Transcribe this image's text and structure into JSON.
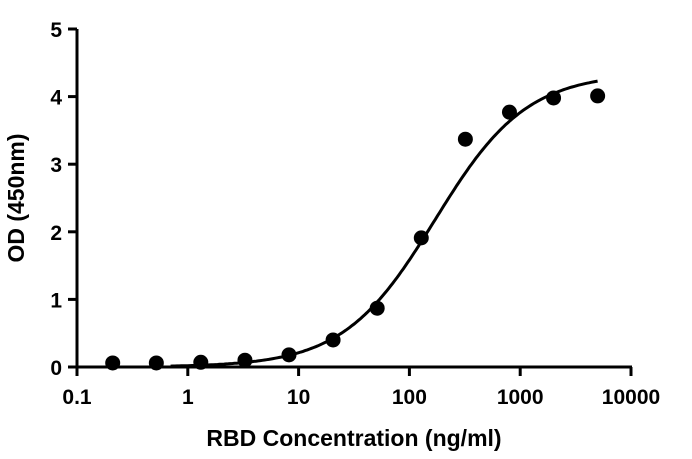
{
  "chart_data": {
    "type": "scatter",
    "title": "",
    "xlabel": "RBD Concentration (ng/ml)",
    "ylabel": "OD (450nm)",
    "x_scale": "log",
    "xlim": [
      0.1,
      10000
    ],
    "ylim": [
      0,
      5
    ],
    "x_ticks": [
      "0.1",
      "1",
      "10",
      "100",
      "1000",
      "10000"
    ],
    "y_ticks": [
      "0",
      "1",
      "2",
      "3",
      "4",
      "5"
    ],
    "grid": false,
    "legend": "none",
    "marker_color": "#000000",
    "x": [
      0.21,
      0.52,
      1.31,
      3.28,
      8.19,
      20.48,
      51.2,
      128,
      320,
      800,
      2000,
      5000
    ],
    "y": [
      0.06,
      0.06,
      0.07,
      0.1,
      0.18,
      0.4,
      0.87,
      1.91,
      3.37,
      3.77,
      3.98,
      4.01
    ],
    "fit_curve": {
      "model": "4PL",
      "bottom": 0.0,
      "top": 4.35,
      "ec50": 170,
      "hill": 1.05,
      "x_range": [
        0.7,
        5000
      ]
    }
  }
}
